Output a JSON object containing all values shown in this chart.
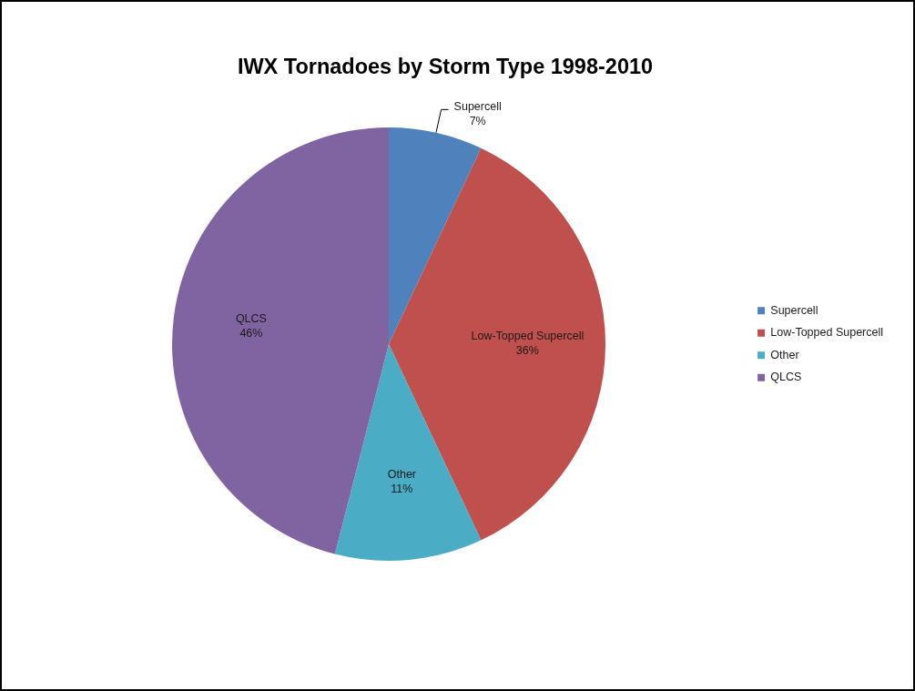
{
  "chart_data": {
    "type": "pie",
    "title": "IWX Tornadoes by Storm Type 1998-2010",
    "categories": [
      "Supercell",
      "Low-Topped Supercell",
      "Other",
      "QLCS"
    ],
    "values": [
      7,
      36,
      11,
      46
    ],
    "colors": [
      "#4f81bd",
      "#c0504d",
      "#4bacc6",
      "#8064a2"
    ],
    "value_labels": [
      "7%",
      "36%",
      "11%",
      "46%"
    ],
    "legend": "right"
  }
}
